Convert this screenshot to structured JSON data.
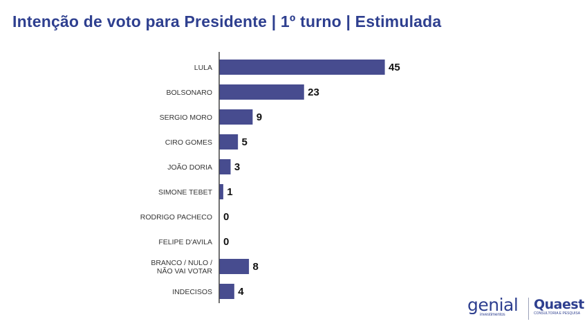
{
  "title": "Intenção de voto para Presidente | 1º turno | Estimulada",
  "colors": {
    "bar": "#474c8f",
    "title": "#2e3f8f",
    "axis": "#222222"
  },
  "chart_data": {
    "type": "bar",
    "orientation": "horizontal",
    "title": "Intenção de voto para Presidente | 1º turno | Estimulada",
    "categories": [
      [
        "LULA"
      ],
      [
        "BOLSONARO"
      ],
      [
        "SERGIO MORO"
      ],
      [
        "CIRO GOMES"
      ],
      [
        "JOÃO DORIA"
      ],
      [
        "SIMONE TEBET"
      ],
      [
        "RODRIGO PACHECO"
      ],
      [
        "FELIPE D'AVILA"
      ],
      [
        "BRANCO / NULO /",
        "NÃO VAI VOTAR"
      ],
      [
        "INDECISOS"
      ]
    ],
    "values": [
      45,
      23,
      9,
      5,
      3,
      1,
      0,
      0,
      8,
      4
    ],
    "xlim": [
      0,
      45
    ],
    "grid": false,
    "legend": "none"
  },
  "logos": {
    "genial": {
      "word": "genial",
      "sub": "investimentos"
    },
    "quaest": {
      "word": "Quaest",
      "sub": "CONSULTORIA E PESQUISA"
    }
  }
}
